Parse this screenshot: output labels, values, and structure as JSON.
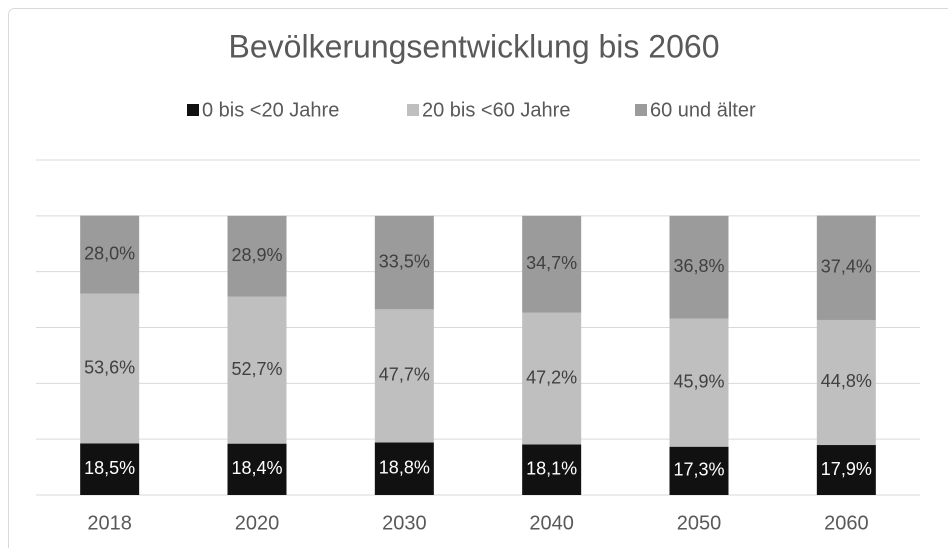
{
  "chart_data": {
    "type": "stacked_bar",
    "title": "Bevölkerungsentwicklung bis 2060",
    "categories": [
      "2018",
      "2020",
      "2030",
      "2040",
      "2050",
      "2060"
    ],
    "series": [
      {
        "name": "0 bis <20 Jahre",
        "color": "#111111",
        "values": [
          18.5,
          18.4,
          18.8,
          18.1,
          17.3,
          17.9
        ],
        "value_labels": [
          "18,5%",
          "18,4%",
          "18,8%",
          "18,1%",
          "17,3%",
          "17,9%"
        ]
      },
      {
        "name": "20 bis <60 Jahre",
        "color": "#bfbfbf",
        "values": [
          53.6,
          52.7,
          47.7,
          47.2,
          45.9,
          44.8
        ],
        "value_labels": [
          "53,6%",
          "52,7%",
          "47,7%",
          "47,2%",
          "45,9%",
          "44,8%"
        ]
      },
      {
        "name": "60 und älter",
        "color": "#9b9b9b",
        "values": [
          28.0,
          28.9,
          33.5,
          34.7,
          36.8,
          37.4
        ],
        "value_labels": [
          "28,0%",
          "28,9%",
          "33,5%",
          "34,7%",
          "36,8%",
          "37,4%"
        ]
      }
    ],
    "ylim": [
      0,
      120
    ],
    "yticks": [
      0,
      20,
      40,
      60,
      80,
      100,
      120
    ],
    "grid": true,
    "legend": "top"
  }
}
